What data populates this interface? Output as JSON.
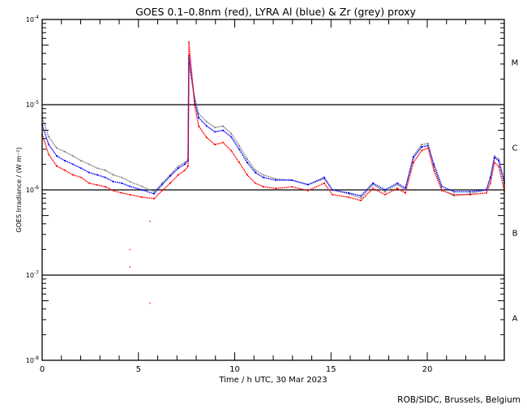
{
  "chart_data": {
    "type": "scatter",
    "title": "GOES 0.1–0.8nm (red), LYRA Al (blue) & Zr (grey) proxy",
    "xlabel": "Time / h UTC, 30 Mar 2023",
    "ylabel": "GOES Irradiance / (W m⁻²)",
    "xlim": [
      0,
      24
    ],
    "ylim": [
      1e-08,
      0.0001
    ],
    "yscale": "log",
    "x_ticks": [
      0,
      5,
      10,
      15,
      20
    ],
    "x_tick_labels": [
      "0",
      "5",
      "10",
      "15",
      "20"
    ],
    "y_ticks": [
      1e-08,
      1e-07,
      1e-06,
      1e-05,
      0.0001
    ],
    "y_tick_labels": [
      {
        "base": "10",
        "exp": "-8"
      },
      {
        "base": "10",
        "exp": "-7"
      },
      {
        "base": "10",
        "exp": "-6"
      },
      {
        "base": "10",
        "exp": "-5"
      },
      {
        "base": "10",
        "exp": "-4"
      }
    ],
    "reference_lines": [
      1e-07,
      1e-06,
      1e-05
    ],
    "flare_classes": [
      {
        "label": "M",
        "low": 1e-05,
        "high": 0.0001
      },
      {
        "label": "C",
        "low": 1e-06,
        "high": 1e-05
      },
      {
        "label": "B",
        "low": 1e-07,
        "high": 1e-06
      },
      {
        "label": "A",
        "low": 1e-08,
        "high": 1e-07
      }
    ],
    "x": [
      0,
      0.34,
      0.76,
      1.18,
      1.6,
      2.02,
      2.44,
      2.86,
      3.28,
      3.7,
      4.13,
      4.55,
      5.18,
      5.81,
      6.23,
      6.65,
      7.07,
      7.41,
      7.58,
      7.62,
      7.92,
      8.13,
      8.55,
      8.97,
      9.39,
      9.81,
      10.23,
      10.65,
      11.07,
      11.49,
      12.13,
      12.97,
      13.81,
      14.65,
      15.07,
      15.92,
      16.55,
      17.18,
      17.81,
      18.44,
      18.86,
      19.28,
      19.71,
      20.04,
      20.34,
      20.76,
      21.39,
      22.23,
      23.07,
      23.28,
      23.49,
      23.71,
      24
    ],
    "series": [
      {
        "name": "GOES 0.1-0.8nm",
        "color": "#ff0000",
        "values": [
          4.5e-06,
          2.6e-06,
          1.9e-06,
          1.7e-06,
          1.5e-06,
          1.4e-06,
          1.2e-06,
          1.14e-06,
          1.09e-06,
          9.8e-07,
          9.2e-07,
          8.8e-07,
          8.2e-07,
          7.9e-07,
          9.8e-07,
          1.2e-06,
          1.5e-06,
          1.7e-06,
          1.9e-06,
          5.4e-05,
          9.8e-06,
          5.6e-06,
          4.1e-06,
          3.4e-06,
          3.6e-06,
          2.9e-06,
          2.1e-06,
          1.5e-06,
          1.2e-06,
          1.09e-06,
          1.04e-06,
          1.09e-06,
          9.8e-07,
          1.2e-06,
          8.8e-07,
          8.2e-07,
          7.5e-07,
          1.04e-06,
          8.8e-07,
          1.04e-06,
          9.2e-07,
          2.1e-06,
          2.9e-06,
          3.1e-06,
          1.7e-06,
          9.8e-07,
          8.8e-07,
          8.8e-07,
          9.2e-07,
          1.2e-06,
          2.1e-06,
          1.9e-06,
          9.8e-07
        ]
      },
      {
        "name": "LYRA Al proxy",
        "color": "#0000ff",
        "values": [
          5.8e-06,
          3.4e-06,
          2.5e-06,
          2.2e-06,
          2e-06,
          1.8e-06,
          1.6e-06,
          1.5e-06,
          1.4e-06,
          1.25e-06,
          1.2e-06,
          1.1e-06,
          1e-06,
          9e-07,
          1.15e-06,
          1.45e-06,
          1.8e-06,
          2e-06,
          2.2e-06,
          3.8e-05,
          1.1e-05,
          7e-06,
          5.6e-06,
          4.8e-06,
          5e-06,
          4.2e-06,
          3e-06,
          2.1e-06,
          1.6e-06,
          1.4e-06,
          1.3e-06,
          1.3e-06,
          1.15e-06,
          1.4e-06,
          1e-06,
          9.2e-07,
          8.5e-07,
          1.2e-06,
          1e-06,
          1.2e-06,
          1.05e-06,
          2.4e-06,
          3.2e-06,
          3.3e-06,
          2e-06,
          1.1e-06,
          9.5e-07,
          9.5e-07,
          1e-06,
          1.4e-06,
          2.4e-06,
          2.2e-06,
          1.2e-06
        ]
      },
      {
        "name": "LYRA Zr proxy",
        "color": "#808080",
        "values": [
          7e-06,
          4.2e-06,
          3.1e-06,
          2.8e-06,
          2.5e-06,
          2.2e-06,
          2e-06,
          1.8e-06,
          1.7e-06,
          1.5e-06,
          1.4e-06,
          1.25e-06,
          1.1e-06,
          9.5e-07,
          1.2e-06,
          1.5e-06,
          1.9e-06,
          2.1e-06,
          2.3e-06,
          3e-05,
          1.2e-05,
          7.8e-06,
          6.3e-06,
          5.4e-06,
          5.6e-06,
          4.6e-06,
          3.3e-06,
          2.3e-06,
          1.7e-06,
          1.5e-06,
          1.35e-06,
          1.3e-06,
          1.15e-06,
          1.35e-06,
          1e-06,
          9e-07,
          8e-07,
          1.15e-06,
          9.5e-07,
          1.15e-06,
          1e-06,
          2.5e-06,
          3.4e-06,
          3.5e-06,
          1.9e-06,
          1e-06,
          8.5e-07,
          9e-07,
          1e-06,
          1.4e-06,
          2.5e-06,
          2.3e-06,
          1.3e-06
        ]
      }
    ],
    "outliers": [
      {
        "series": "GOES 0.1-0.8nm",
        "x": 4.55,
        "y": 2e-07
      },
      {
        "series": "GOES 0.1-0.8nm",
        "x": 4.55,
        "y": 1.25e-07
      },
      {
        "series": "GOES 0.1-0.8nm",
        "x": 5.6,
        "y": 4.7e-08
      },
      {
        "series": "GOES 0.1-0.8nm",
        "x": 5.6,
        "y": 4.3e-07
      }
    ],
    "grid": false,
    "legend": "none"
  },
  "credit": "ROB/SIDC, Brussels, Belgium"
}
